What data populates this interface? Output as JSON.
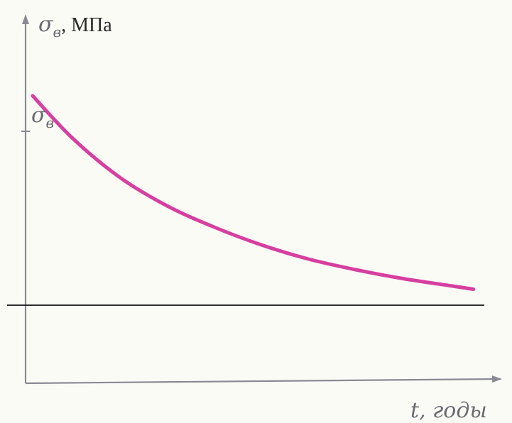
{
  "chart_data": {
    "type": "line",
    "ylabel_symbol": "σ",
    "ylabel_subscript": "в",
    "ylabel_unit": ", МПа",
    "xlabel": "t, годы",
    "start_label_symbol": "σ",
    "start_label_subscript": "в",
    "grid": false,
    "legend": "none",
    "axis_ticks_numeric": false,
    "xlim": [
      0,
      10
    ],
    "ylim": [
      0,
      10
    ],
    "series": [
      {
        "color": "#d63fa0",
        "shape": "decaying",
        "x": [
          0.15,
          1,
          2,
          3,
          4,
          5,
          6,
          7,
          8,
          9,
          9.5
        ],
        "y": [
          8.1,
          6.9,
          5.8,
          5.0,
          4.4,
          3.9,
          3.5,
          3.2,
          2.95,
          2.75,
          2.65
        ]
      }
    ],
    "horizontal_line": {
      "y": 2.2,
      "color": "#111111"
    }
  }
}
